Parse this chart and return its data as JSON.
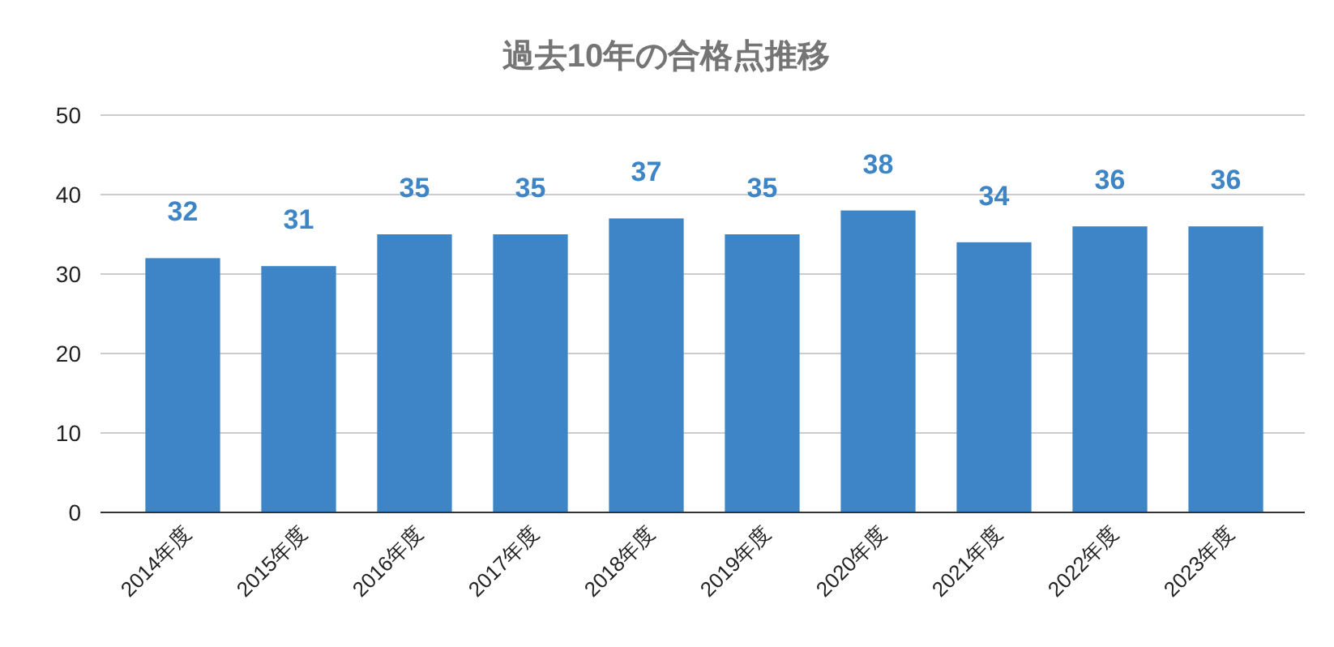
{
  "chart_data": {
    "type": "bar",
    "title": "過去10年の合格点推移",
    "categories": [
      "2014年度",
      "2015年度",
      "2016年度",
      "2017年度",
      "2018年度",
      "2019年度",
      "2020年度",
      "2021年度",
      "2022年度",
      "2023年度"
    ],
    "values": [
      32,
      31,
      35,
      35,
      37,
      35,
      38,
      34,
      36,
      36
    ],
    "color": "#3d85c6",
    "ylim": [
      0,
      50
    ],
    "yticks": [
      0,
      10,
      20,
      30,
      40,
      50
    ],
    "grid": "y",
    "data_labels": true
  }
}
